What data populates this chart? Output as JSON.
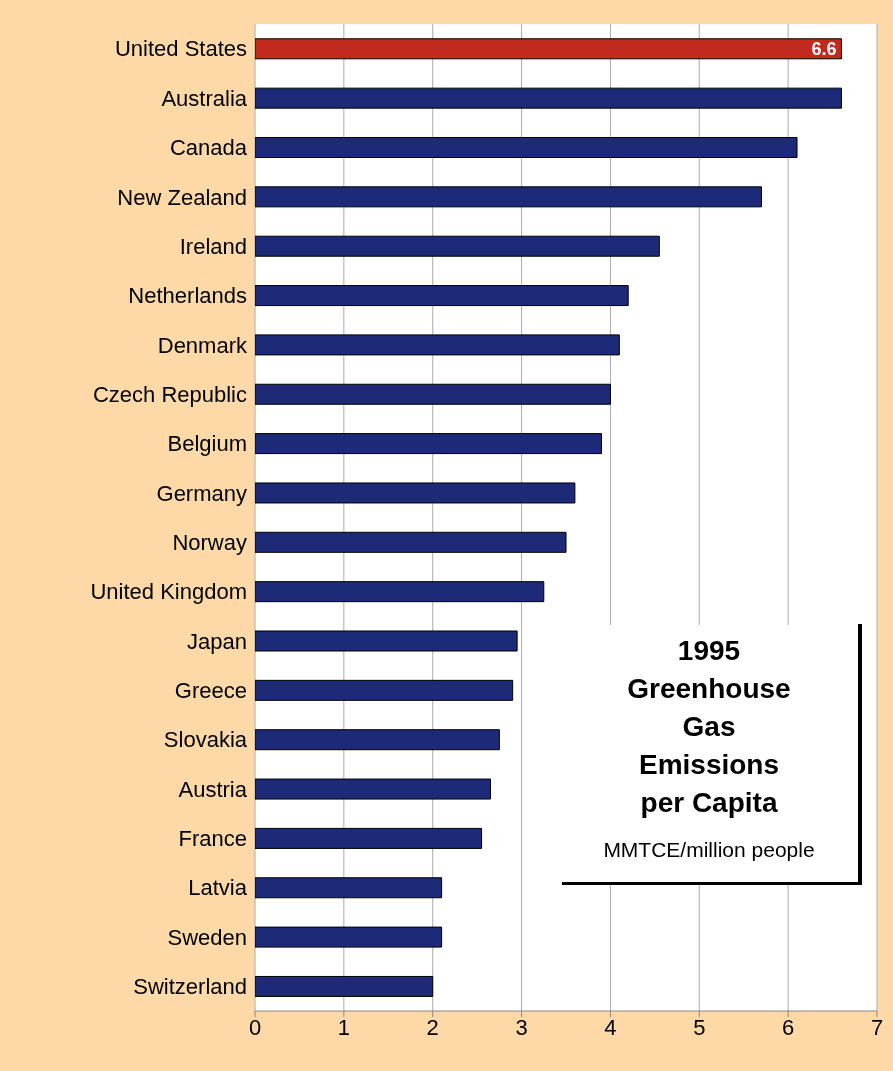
{
  "chart_data": {
    "type": "bar",
    "orientation": "horizontal",
    "title": "1995 Greenhouse Gas Emissions per Capita",
    "subtitle": "MMTCE/million people",
    "categories": [
      "United States",
      "Australia",
      "Canada",
      "New Zealand",
      "Ireland",
      "Netherlands",
      "Denmark",
      "Czech Republic",
      "Belgium",
      "Germany",
      "Norway",
      "United Kingdom",
      "Japan",
      "Greece",
      "Slovakia",
      "Austria",
      "France",
      "Latvia",
      "Sweden",
      "Switzerland"
    ],
    "values": [
      6.6,
      6.6,
      6.1,
      5.7,
      4.55,
      4.2,
      4.1,
      4.0,
      3.9,
      3.6,
      3.5,
      3.25,
      2.95,
      2.9,
      2.75,
      2.65,
      2.55,
      2.1,
      2.1,
      2.0
    ],
    "colors": [
      "#c22a1e",
      "#1d2a78",
      "#1d2a78",
      "#1d2a78",
      "#1d2a78",
      "#1d2a78",
      "#1d2a78",
      "#1d2a78",
      "#1d2a78",
      "#1d2a78",
      "#1d2a78",
      "#1d2a78",
      "#1d2a78",
      "#1d2a78",
      "#1d2a78",
      "#1d2a78",
      "#1d2a78",
      "#1d2a78",
      "#1d2a78",
      "#1d2a78"
    ],
    "value_labels": [
      "6.6",
      null,
      null,
      null,
      null,
      null,
      null,
      null,
      null,
      null,
      null,
      null,
      null,
      null,
      null,
      null,
      null,
      null,
      null,
      null
    ],
    "xlim": [
      0,
      7
    ],
    "xticks": [
      0,
      1,
      2,
      3,
      4,
      5,
      6,
      7
    ],
    "grid": "x"
  }
}
